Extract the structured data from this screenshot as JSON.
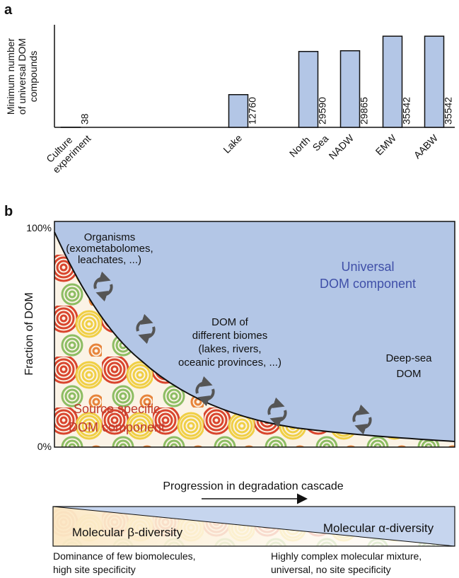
{
  "chart_data": {
    "type": "bar",
    "panel_label": "a",
    "ylabel": [
      "Minimum number",
      "of universal DOM",
      "compounds"
    ],
    "categories": [
      "Culture experiment",
      "Lake",
      "North Sea",
      "NADW",
      "EMW",
      "AABW"
    ],
    "values": [
      38,
      12760,
      29590,
      29865,
      35542,
      35542
    ],
    "color": "#b3c6e6",
    "ylim": [
      0,
      40000
    ]
  },
  "diagram": {
    "panel_label": "b",
    "y_top": "100%",
    "y_bottom": "0%",
    "ylabel": "Fraction of DOM",
    "organisms": [
      "Organisms",
      "(exometabolomes,",
      "leachates, ...)"
    ],
    "universal": [
      "Universal",
      "DOM component"
    ],
    "biomes": [
      "DOM of",
      "different biomes",
      "(lakes, rivers,",
      "oceanic provinces, ...)"
    ],
    "deep_sea": [
      "Deep-sea",
      "DOM"
    ],
    "source_specific": [
      "Source specific",
      "DOM component"
    ],
    "xlabel": "Progression in degradation cascade",
    "alpha": "Molecular α-diversity",
    "beta": "Molecular β-diversity",
    "left_note": [
      "Dominance of few biomolecules,",
      "high site specificity"
    ],
    "right_note": [
      "Highly complex molecular mixture,",
      "universal, no site specificity"
    ]
  }
}
